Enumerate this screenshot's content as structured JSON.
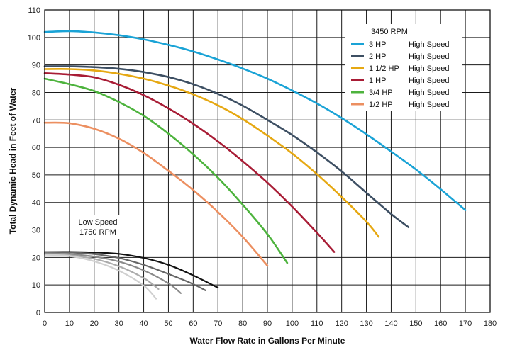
{
  "chart_data": {
    "type": "line",
    "xlabel": "Water Flow Rate in Gallons Per Minute",
    "ylabel": "Total Dynamic Head in Feet of Water",
    "xlim": [
      0,
      180
    ],
    "ylim": [
      0,
      110
    ],
    "xticks": [
      0,
      10,
      20,
      30,
      40,
      50,
      60,
      70,
      80,
      90,
      100,
      110,
      120,
      130,
      140,
      150,
      160,
      170,
      180
    ],
    "yticks": [
      0,
      10,
      20,
      30,
      40,
      50,
      60,
      70,
      80,
      90,
      100,
      110
    ],
    "grid": true,
    "legend": {
      "title": "3450 RPM",
      "placement": "top-right",
      "speed_label": "High Speed"
    },
    "annotation": {
      "line1": "Low Speed",
      "line2": "1750 RPM"
    },
    "series": [
      {
        "name": "3 HP",
        "speed": "High Speed",
        "color": "#1aa3d6",
        "x": [
          0,
          10,
          20,
          30,
          40,
          50,
          60,
          70,
          80,
          90,
          100,
          110,
          120,
          130,
          140,
          150,
          160,
          170
        ],
        "y": [
          102,
          102.3,
          101.8,
          100.8,
          99.3,
          97.3,
          94.9,
          92,
          88.7,
          85,
          80.7,
          76,
          70.7,
          64.8,
          58.5,
          52,
          44.8,
          37.2
        ]
      },
      {
        "name": "2 HP",
        "speed": "High Speed",
        "color": "#3d4f63",
        "x": [
          0,
          10,
          20,
          30,
          40,
          50,
          60,
          70,
          80,
          90,
          100,
          110,
          120,
          130,
          140,
          147
        ],
        "y": [
          89.5,
          89.5,
          89.2,
          88.6,
          87.4,
          85.6,
          83,
          79.5,
          75.2,
          70,
          64.5,
          58.2,
          51.3,
          43.5,
          35.8,
          31
        ]
      },
      {
        "name": "1 1/2 HP",
        "speed": "High Speed",
        "color": "#e6a812",
        "x": [
          0,
          10,
          20,
          30,
          40,
          50,
          60,
          70,
          80,
          90,
          100,
          110,
          120,
          130,
          135
        ],
        "y": [
          88.5,
          88.5,
          88,
          86.8,
          85,
          82.5,
          79.3,
          75.3,
          70.3,
          64.3,
          57.8,
          50.3,
          42,
          33,
          27.5
        ]
      },
      {
        "name": "1 HP",
        "speed": "High Speed",
        "color": "#a81c35",
        "x": [
          0,
          10,
          20,
          30,
          40,
          50,
          60,
          70,
          80,
          90,
          100,
          110,
          117
        ],
        "y": [
          87,
          86.5,
          85.5,
          82.8,
          79,
          74.2,
          68.6,
          62.2,
          55,
          47.2,
          38.5,
          29,
          22
        ]
      },
      {
        "name": "3/4 HP",
        "speed": "High Speed",
        "color": "#4db33d",
        "x": [
          0,
          10,
          20,
          30,
          40,
          50,
          60,
          70,
          80,
          90,
          98
        ],
        "y": [
          85,
          83,
          80.5,
          76.5,
          71.5,
          65,
          57.5,
          49,
          39.2,
          28.5,
          18
        ]
      },
      {
        "name": "1/2 HP",
        "speed": "High Speed",
        "color": "#ec8f60",
        "x": [
          0,
          10,
          20,
          30,
          40,
          50,
          60,
          70,
          80,
          90
        ],
        "y": [
          69,
          68.8,
          66.8,
          63.2,
          58,
          51.5,
          44.5,
          36.5,
          27.5,
          17
        ]
      }
    ],
    "low_speed_series": [
      {
        "color": "#111111",
        "x": [
          0,
          10,
          20,
          30,
          40,
          50,
          60,
          70
        ],
        "y": [
          22,
          22,
          21.8,
          21.3,
          19.8,
          17.3,
          13.5,
          9
        ]
      },
      {
        "color": "#666666",
        "x": [
          0,
          10,
          20,
          30,
          40,
          50,
          60,
          65
        ],
        "y": [
          22,
          21.8,
          21.2,
          19.8,
          17.3,
          14,
          10.3,
          8
        ]
      },
      {
        "color": "#8a8a8a",
        "x": [
          0,
          10,
          20,
          30,
          40,
          50,
          55
        ],
        "y": [
          21.5,
          21.2,
          20.3,
          18.5,
          15.3,
          10.6,
          7
        ]
      },
      {
        "color": "#ababab",
        "x": [
          0,
          10,
          20,
          30,
          40,
          46
        ],
        "y": [
          21.2,
          20.8,
          19.5,
          16.8,
          12.5,
          8.5
        ]
      },
      {
        "color": "#d0d0d0",
        "x": [
          0,
          10,
          20,
          30,
          40,
          45
        ],
        "y": [
          21,
          20.5,
          18.6,
          15.2,
          9.8,
          5
        ]
      }
    ]
  }
}
